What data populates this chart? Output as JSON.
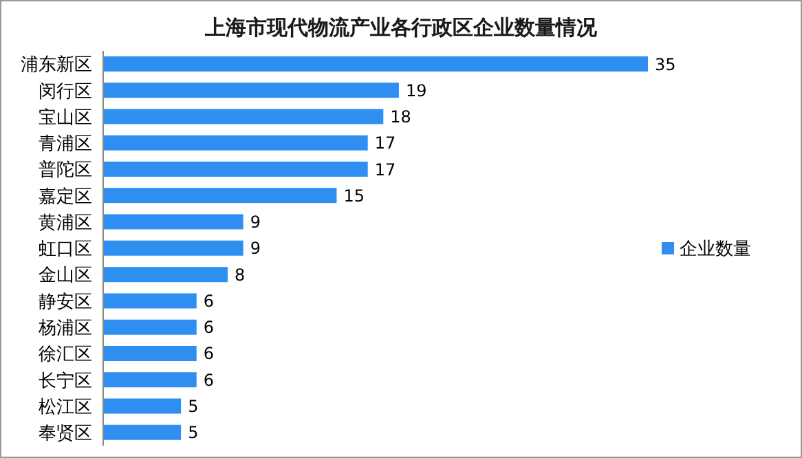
{
  "chart_data": {
    "type": "bar",
    "orientation": "horizontal",
    "title": "上海市现代物流产业各行政区企业数量情况",
    "categories": [
      "浦东新区",
      "闵行区",
      "宝山区",
      "青浦区",
      "普陀区",
      "嘉定区",
      "黄浦区",
      "虹口区",
      "金山区",
      "静安区",
      "杨浦区",
      "徐汇区",
      "长宁区",
      "松江区",
      "奉贤区"
    ],
    "series": [
      {
        "name": "企业数量",
        "color": "#2f8ff0",
        "values": [
          35,
          19,
          18,
          17,
          17,
          15,
          9,
          9,
          8,
          6,
          6,
          6,
          6,
          5,
          5
        ]
      }
    ],
    "data_labels": true,
    "legend": "right",
    "grid": false
  }
}
